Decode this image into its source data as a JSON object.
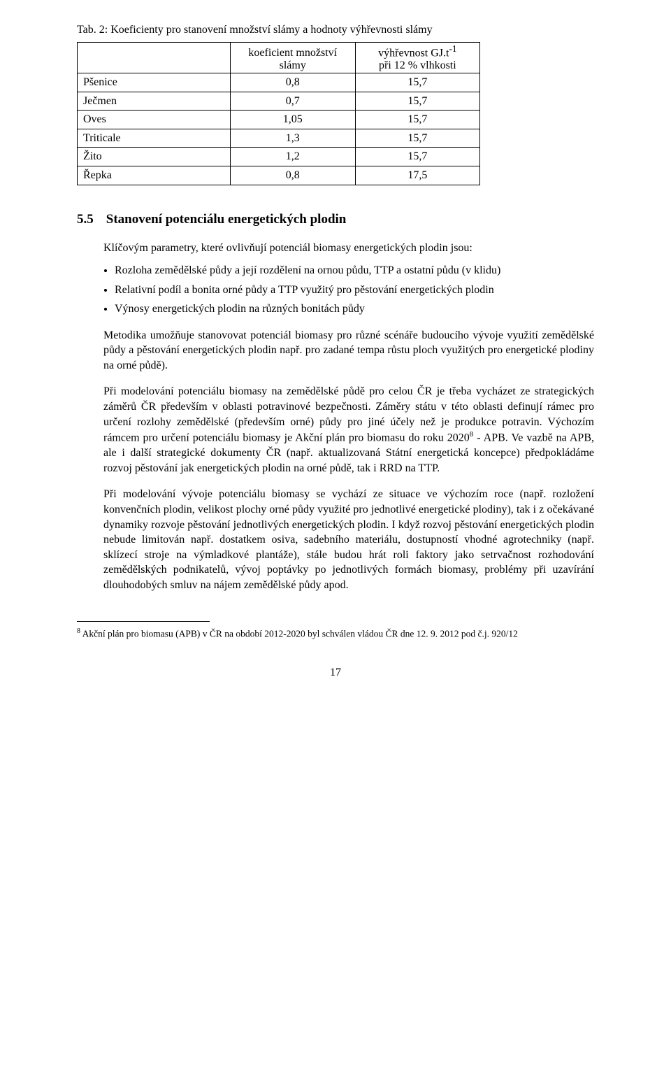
{
  "table": {
    "caption": "Tab. 2: Koeficienty pro stanovení množství slámy a hodnoty výhřevnosti slámy",
    "header_col1": "koeficient množství slámy",
    "header_col2_line1": "výhřevnost GJ.t",
    "header_col2_sup": "-1",
    "header_col2_line2": "při 12 % vlhkosti",
    "rows": [
      {
        "name": "Pšenice",
        "coef": "0,8",
        "heat": "15,7"
      },
      {
        "name": "Ječmen",
        "coef": "0,7",
        "heat": "15,7"
      },
      {
        "name": "Oves",
        "coef": "1,05",
        "heat": "15,7"
      },
      {
        "name": "Triticale",
        "coef": "1,3",
        "heat": "15,7"
      },
      {
        "name": "Žito",
        "coef": "1,2",
        "heat": "15,7"
      },
      {
        "name": "Řepka",
        "coef": "0,8",
        "heat": "17,5"
      }
    ]
  },
  "section": {
    "number": "5.5",
    "title": "Stanovení potenciálu energetických plodin",
    "intro": "Klíčovým parametry, které ovlivňují potenciál biomasy energetických plodin jsou:",
    "bullets": [
      "Rozloha zemědělské půdy a její rozdělení na ornou půdu, TTP a ostatní půdu (v klidu)",
      "Relativní podíl a bonita orné půdy a TTP využitý pro pěstování energetických plodin",
      "Výnosy energetických plodin na různých bonitách půdy"
    ],
    "p1": "Metodika umožňuje stanovovat potenciál biomasy pro různé scénáře budoucího vývoje využití zemědělské půdy a pěstování energetických plodin např. pro zadané tempa růstu ploch využitých pro energetické plodiny na orné půdě).",
    "p2_part1": "Při modelování potenciálu biomasy na zemědělské půdě pro celou ČR je třeba vycházet ze strategických záměrů ČR především v oblasti potravinové bezpečnosti. Záměry státu v této oblasti definují rámec pro určení rozlohy zemědělské (především orné) půdy pro jiné účely než je produkce potravin. Výchozím rámcem pro určení potenciálu biomasy je Akční plán pro biomasu do roku 2020",
    "p2_fn": "8",
    "p2_part2": " - APB. Ve vazbě na APB, ale i další strategické dokumenty ČR (např. aktualizovaná Státní energetická koncepce) předpokládáme rozvoj pěstování jak energetických plodin na orné půdě, tak i RRD na TTP.",
    "p3": "Při modelování vývoje potenciálu biomasy se vychází ze situace ve výchozím roce (např. rozložení konvenčních plodin, velikost plochy orné půdy využité pro jednotlivé energetické plodiny), tak i z očekávané dynamiky rozvoje pěstování jednotlivých energetických plodin. I když rozvoj pěstování energetických plodin nebude limitován např. dostatkem osiva, sadebního materiálu, dostupností vhodné agrotechniky (např. sklízecí stroje na výmladkové plantáže), stále budou hrát roli faktory jako setrvačnost rozhodování zemědělských podnikatelů, vývoj poptávky po jednotlivých formách biomasy, problémy při uzavírání dlouhodobých smluv na nájem zemědělské půdy apod."
  },
  "footnote": {
    "marker": "8",
    "text": " Akční plán pro biomasu (APB) v ČR na období 2012-2020 byl schválen vládou ČR dne 12. 9. 2012 pod č.j. 920/12"
  },
  "pagenum": "17"
}
